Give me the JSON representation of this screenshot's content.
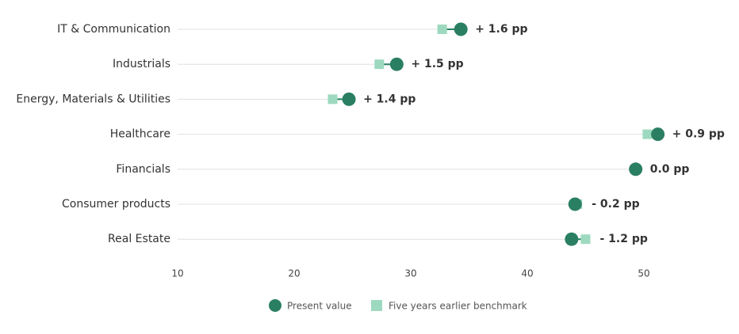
{
  "chart_data": {
    "type": "dumbbell",
    "categories": [
      "IT & Communication",
      "Industrials",
      "Energy, Materials & Utilities",
      "Healthcare",
      "Financials",
      "Consumer products",
      "Real Estate"
    ],
    "series": [
      {
        "name": "Five years earlier benchmark",
        "color": "#9dd9bf",
        "values": [
          32.7,
          27.3,
          23.3,
          50.3,
          49.3,
          44.3,
          45.0
        ]
      },
      {
        "name": "Present value",
        "color": "#2a7f62",
        "values": [
          34.3,
          28.8,
          24.7,
          51.2,
          49.3,
          44.1,
          43.8
        ]
      }
    ],
    "annotations": [
      "+ 1.6 pp",
      "+ 1.5 pp",
      "+ 1.4 pp",
      "+ 0.9 pp",
      "0.0 pp",
      "- 0.2 pp",
      "- 1.2 pp"
    ],
    "xlim": [
      10,
      55
    ],
    "xticks": [
      10,
      20,
      30,
      40,
      50
    ],
    "grid": true
  }
}
